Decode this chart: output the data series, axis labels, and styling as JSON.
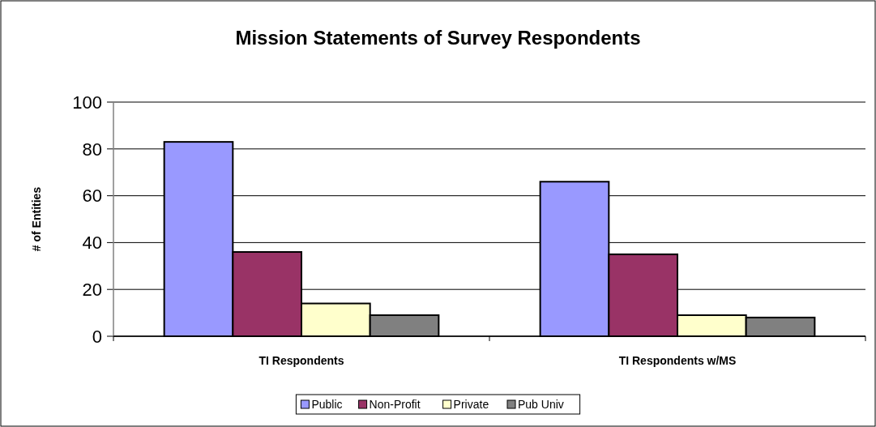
{
  "chart_data": {
    "type": "bar",
    "title": "Mission Statements of Survey Respondents",
    "ylabel": "# of Entities",
    "categories": [
      "TI Respondents",
      "TI Respondents w/MS"
    ],
    "series": [
      {
        "name": "Public",
        "color": "#9999ff",
        "values": [
          83,
          66
        ]
      },
      {
        "name": "Non-Profit",
        "color": "#993366",
        "values": [
          36,
          35
        ]
      },
      {
        "name": "Private",
        "color": "#ffffcc",
        "values": [
          14,
          9
        ]
      },
      {
        "name": "Pub Univ",
        "color": "#808080",
        "values": [
          9,
          8
        ]
      }
    ],
    "ylim": [
      0,
      100
    ],
    "yticks": [
      0,
      20,
      40,
      60,
      80,
      100
    ],
    "grid": "y",
    "legend": "bottom"
  }
}
